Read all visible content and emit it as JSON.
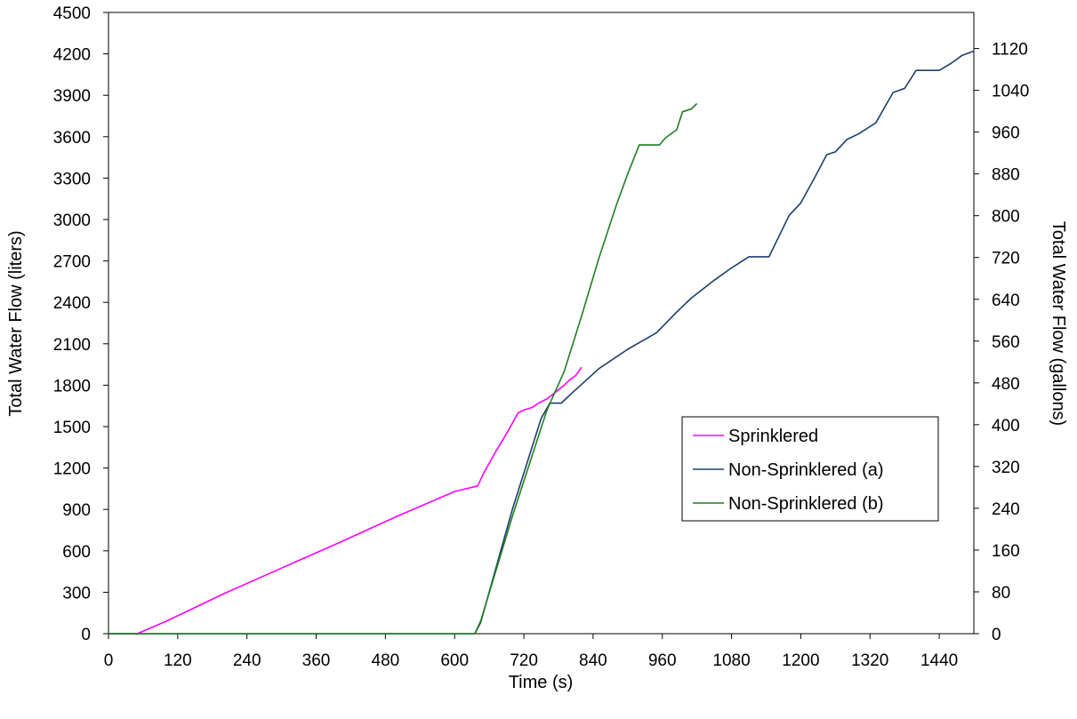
{
  "chart_data": {
    "type": "line",
    "title": "",
    "xlabel": "Time (s)",
    "ylabel": "Total Water Flow (liters)",
    "y2label": "Total Water Flow (gallons)",
    "xlim": [
      0,
      1500
    ],
    "ylim": [
      0,
      4500
    ],
    "y2lim": [
      0,
      1189
    ],
    "xticks": [
      0,
      120,
      240,
      360,
      480,
      600,
      720,
      840,
      960,
      1080,
      1200,
      1320,
      1440
    ],
    "yticks": [
      0,
      300,
      600,
      900,
      1200,
      1500,
      1800,
      2100,
      2400,
      2700,
      3000,
      3300,
      3600,
      3900,
      4200,
      4500
    ],
    "y2ticks": [
      0,
      80,
      160,
      240,
      320,
      400,
      480,
      560,
      640,
      720,
      800,
      880,
      960,
      1040,
      1120
    ],
    "grid": false,
    "legend_position": "right",
    "series": [
      {
        "name": "Sprinklered",
        "color": "#ff00ff",
        "x": [
          0,
          50,
          100,
          200,
          300,
          400,
          500,
          600,
          640,
          650,
          670,
          690,
          710,
          720,
          735,
          745,
          760,
          775,
          790,
          800,
          810,
          820
        ],
        "y": [
          0,
          0,
          90,
          290,
          475,
          660,
          850,
          1030,
          1070,
          1160,
          1310,
          1450,
          1600,
          1620,
          1640,
          1670,
          1700,
          1750,
          1800,
          1840,
          1870,
          1930
        ]
      },
      {
        "name": "Non-Sprinklered (a)",
        "color": "#1c3f6e",
        "x": [
          0,
          635,
          645,
          700,
          750,
          765,
          785,
          800,
          850,
          900,
          950,
          985,
          1010,
          1050,
          1080,
          1110,
          1125,
          1145,
          1160,
          1180,
          1200,
          1225,
          1245,
          1260,
          1280,
          1300,
          1330,
          1360,
          1380,
          1400,
          1420,
          1440,
          1460,
          1480,
          1500
        ],
        "y": [
          0,
          0,
          80,
          900,
          1560,
          1670,
          1670,
          1730,
          1920,
          2060,
          2180,
          2330,
          2430,
          2560,
          2650,
          2730,
          2730,
          2730,
          2860,
          3030,
          3120,
          3310,
          3470,
          3490,
          3580,
          3620,
          3700,
          3920,
          3950,
          4080,
          4080,
          4080,
          4130,
          4190,
          4220
        ]
      },
      {
        "name": "Non-Sprinklered (b)",
        "color": "#1f7f1f",
        "x": [
          0,
          635,
          645,
          700,
          760,
          790,
          820,
          850,
          880,
          900,
          920,
          935,
          955,
          965,
          985,
          995,
          1010,
          1020
        ],
        "y": [
          0,
          0,
          90,
          850,
          1620,
          1900,
          2300,
          2720,
          3100,
          3330,
          3540,
          3540,
          3540,
          3590,
          3650,
          3780,
          3800,
          3840
        ]
      }
    ]
  }
}
